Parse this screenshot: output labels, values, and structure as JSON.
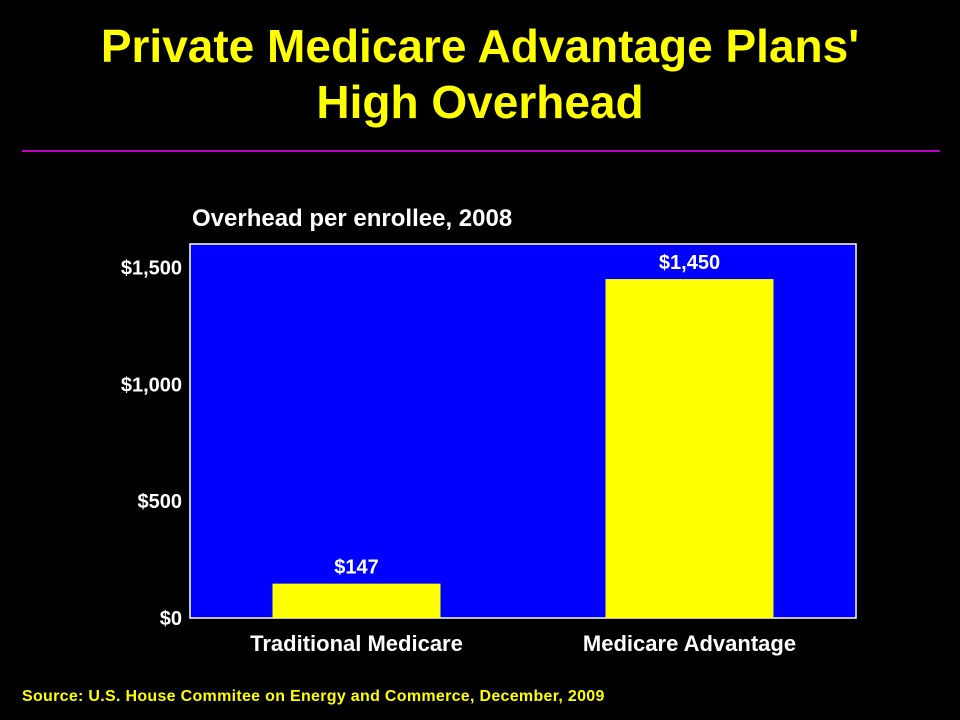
{
  "slide": {
    "title_line1": "Private Medicare Advantage Plans'",
    "title_line2": "High Overhead",
    "source": "Source: U.S. House Commitee on Energy and Commerce, December, 2009"
  },
  "colors": {
    "background": "#000000",
    "title": "#FFFF00",
    "rule": "#C000C0",
    "plot_area": "#0000FF",
    "bar": "#FFFF00",
    "text": "#FFFFFF"
  },
  "chart_data": {
    "type": "bar",
    "title": "Overhead per enrollee, 2008",
    "categories": [
      "Traditional Medicare",
      "Medicare Advantage"
    ],
    "values": [
      147,
      1450
    ],
    "value_labels": [
      "$147",
      "$1,450"
    ],
    "ylim": [
      0,
      1600
    ],
    "yticks": [
      0,
      500,
      1000,
      1500
    ],
    "ytick_labels": [
      "$0",
      "$500",
      "$1,000",
      "$1,500"
    ],
    "xlabel": "",
    "ylabel": "",
    "grid": false,
    "legend": "none"
  }
}
